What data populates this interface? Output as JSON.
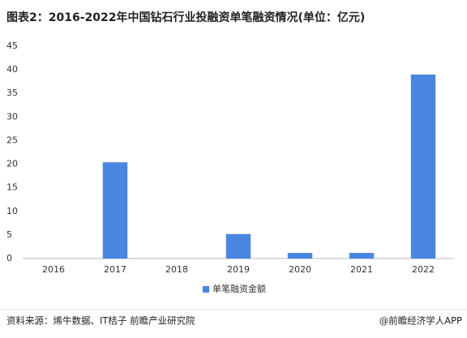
{
  "chart_data": {
    "type": "bar",
    "title": "图表2：2016-2022年中国钻石行业投融资单笔融资情况(单位：亿元)",
    "categories": [
      "2016",
      "2017",
      "2018",
      "2019",
      "2020",
      "2021",
      "2022"
    ],
    "series": [
      {
        "name": "单笔融资金额",
        "color": "#4a86e0",
        "values": [
          0,
          20.4,
          0,
          5.2,
          1.2,
          1.2,
          39
        ]
      }
    ],
    "ylim": [
      0,
      45
    ],
    "yticks": [
      0,
      5,
      10,
      15,
      20,
      25,
      30,
      35,
      40,
      45
    ],
    "grid": false,
    "legend": "bottom",
    "source": "资料来源：烯牛数据、IT桔子 前瞻产业研究院",
    "credit": "@前瞻经济学人APP"
  }
}
